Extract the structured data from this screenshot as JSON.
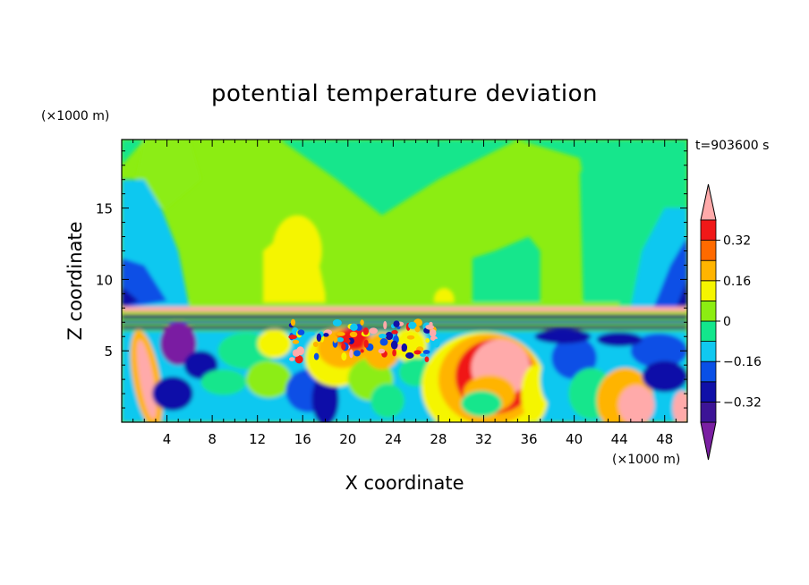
{
  "chart_data": {
    "type": "heatmap",
    "title": "potential temperature deviation",
    "xlabel": "X coordinate",
    "ylabel": "Z coordinate",
    "x_unit": "(×1000 m)",
    "y_unit": "(×1000 m)",
    "time_label": "t=903600 s",
    "xlim": [
      0,
      50
    ],
    "ylim": [
      0,
      19.8
    ],
    "x_ticks": [
      4,
      8,
      12,
      16,
      20,
      24,
      28,
      32,
      36,
      40,
      44,
      48
    ],
    "y_ticks": [
      5,
      10,
      15
    ],
    "colorbar": {
      "levels": [
        -0.4,
        -0.32,
        -0.24,
        -0.16,
        -0.08,
        0,
        0.08,
        0.16,
        0.24,
        0.32,
        0.4
      ],
      "colors": [
        "#7a1fa2",
        "#3c1496",
        "#1010a8",
        "#0a50e6",
        "#10c8f0",
        "#12e68c",
        "#8ced12",
        "#f5f500",
        "#ffb400",
        "#ff6a00",
        "#f01818",
        "#ffaaaa"
      ],
      "tick_labels": [
        "-0.32",
        "-0.16",
        "0",
        "0.16",
        "0.32"
      ],
      "tick_values": [
        -0.32,
        -0.16,
        0,
        0.16,
        0.32
      ],
      "extend": "both"
    }
  }
}
